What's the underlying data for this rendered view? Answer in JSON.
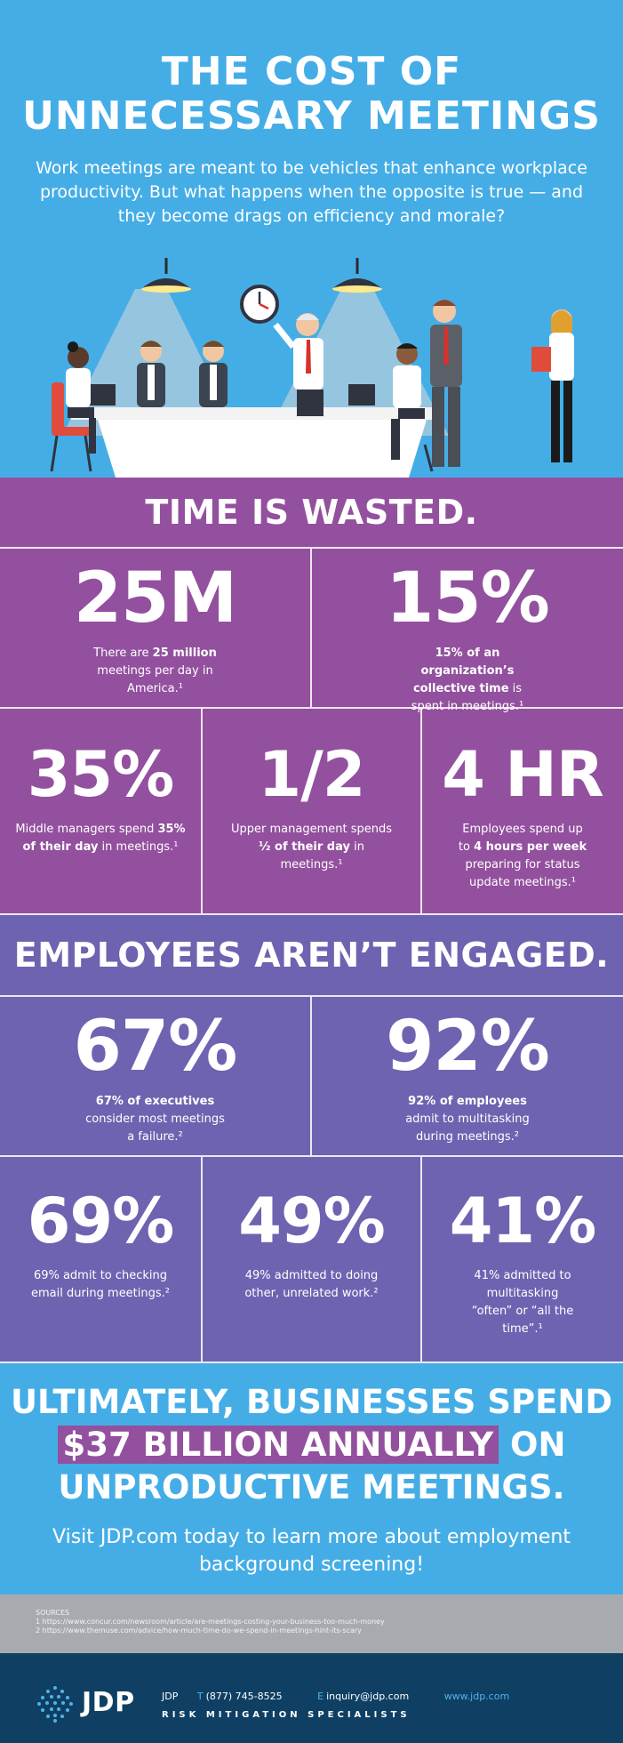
{
  "hero": {
    "title_line1": "THE COST OF",
    "title_line2": "UNNECESSARY MEETINGS",
    "subtitle": "Work meetings are meant to be vehicles that enhance workplace productivity. But what happens when the opposite is true — and they become drags on efficiency and morale?"
  },
  "time_section": {
    "heading": "TIME IS WASTED.",
    "stats": [
      {
        "value": "25M",
        "desc_pre": "There are ",
        "desc_bold": "25 million",
        "desc_post": " meetings per day in America.¹"
      },
      {
        "value": "15%",
        "desc_pre": "",
        "desc_bold": "15% of an organization’s collective time",
        "desc_post": " is spent in meetings.¹"
      },
      {
        "value": "35%",
        "desc_pre": "Middle managers spend ",
        "desc_bold": "35% of their day",
        "desc_post": " in meetings.¹"
      },
      {
        "value": "1/2",
        "desc_pre": "Upper management spends ",
        "desc_bold": "½ of their day",
        "desc_post": " in meetings.¹"
      },
      {
        "value": "4 HR",
        "desc_pre": "Employees spend up to ",
        "desc_bold": "4 hours per week",
        "desc_post": " preparing for status update meetings.¹"
      }
    ]
  },
  "engage_section": {
    "heading": "EMPLOYEES AREN’T ENGAGED.",
    "stats": [
      {
        "value": "67%",
        "desc_pre": "",
        "desc_bold": "67% of executives",
        "desc_post": " consider most meetings a failure.²"
      },
      {
        "value": "92%",
        "desc_pre": "",
        "desc_bold": "92% of employees",
        "desc_post": " admit to multitasking during meetings.²"
      },
      {
        "value": "69%",
        "desc_pre": "69% admit to checking email during meetings.²",
        "desc_bold": "",
        "desc_post": ""
      },
      {
        "value": "49%",
        "desc_pre": "49% admitted to doing other, unrelated work.²",
        "desc_bold": "",
        "desc_post": ""
      },
      {
        "value": "41%",
        "desc_pre": "41% admitted to multitasking “often” or “all the time”.¹",
        "desc_bold": "",
        "desc_post": ""
      }
    ]
  },
  "cta": {
    "line1": "ULTIMATELY, BUSINESSES SPEND",
    "line2_highlight": "$37 BILLION ANNUALLY",
    "line2_rest": " ON",
    "line3": "UNPRODUCTIVE MEETINGS.",
    "visit": "Visit JDP.com today to learn more about employment background screening!"
  },
  "sources": {
    "label": "SOURCES",
    "items": [
      "1 https://www.concur.com/newsroom/article/are-meetings-costing-your-business-too-much-money",
      "2 https://www.themuse.com/advice/how-much-time-do-we-spend-in-meetings-hint-its-scary"
    ]
  },
  "footer": {
    "logo": "JDP",
    "company": "JDP",
    "phone_label": "T",
    "phone": "(877) 745-8525",
    "email_label": "E",
    "email": "inquiry@jdp.com",
    "website": "www.jdp.com",
    "tagline": "RISK MITIGATION SPECIALISTS"
  },
  "colors": {
    "sky_blue": "#45ade6",
    "purple": "#93509e",
    "violet": "#6e63b0",
    "gray": "#a7abaf",
    "navy": "#0f4063"
  }
}
